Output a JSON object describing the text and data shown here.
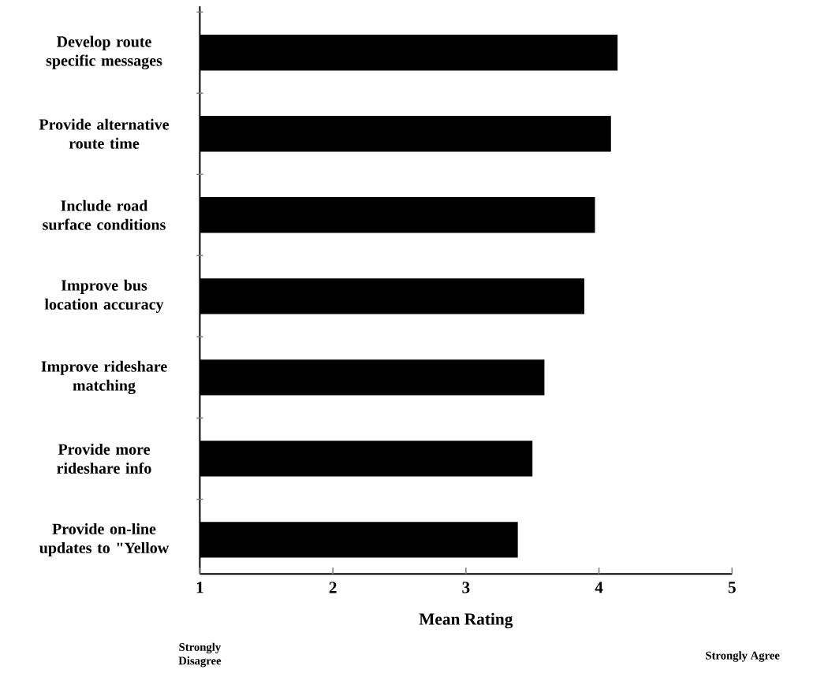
{
  "chart_data": {
    "type": "bar",
    "orientation": "horizontal",
    "xlabel": "Mean Rating",
    "categories": [
      "Develop route specific messages",
      "Provide alternative route time",
      "Include road surface conditions",
      "Improve bus location accuracy",
      "Improve rideshare matching",
      "Provide more rideshare info",
      "Provide on-line updates to \"Yellow"
    ],
    "values": [
      4.14,
      4.09,
      3.97,
      3.89,
      3.59,
      3.5,
      3.39
    ],
    "color": "#000000",
    "xlim": [
      1,
      5
    ],
    "xticks": [
      1,
      2,
      3,
      4,
      5
    ],
    "grid": false,
    "annotations": [
      "Strongly Disagree",
      "Strongly Agree"
    ]
  }
}
